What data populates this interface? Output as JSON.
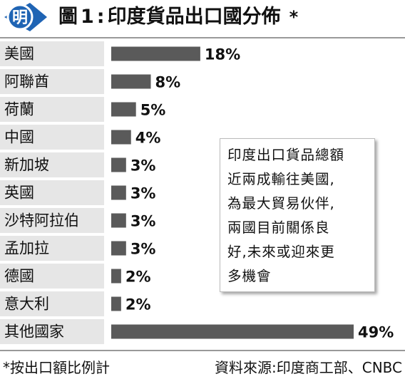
{
  "header": {
    "logo_text": "明",
    "title_prefix": "圖",
    "title_number": "1",
    "title_colon": ":",
    "title_text": "印度貨品出口國分佈",
    "title_star": "*"
  },
  "colors": {
    "bar": "#5a5a5a",
    "accent": "#1f64b4",
    "row_stripe": "#e6e6e6"
  },
  "chart_data": {
    "type": "bar",
    "orientation": "horizontal",
    "title": "印度貨品出口國分佈*",
    "categories": [
      "美國",
      "阿聯酋",
      "荷蘭",
      "中國",
      "新加坡",
      "英國",
      "沙特阿拉伯",
      "孟加拉",
      "德國",
      "意大利",
      "其他國家"
    ],
    "values": [
      18,
      8,
      5,
      4,
      3,
      3,
      3,
      3,
      2,
      2,
      49
    ],
    "value_labels": [
      "18%",
      "8%",
      "5%",
      "4%",
      "3%",
      "3%",
      "3%",
      "3%",
      "2%",
      "2%",
      "49%"
    ],
    "xlim": [
      0,
      49
    ],
    "unit": "%",
    "grid": false
  },
  "note": {
    "lines": [
      "印度出口貨品總額",
      "近兩成輸往美國,",
      "為最大貿易伙伴,",
      "兩國目前關係良",
      "好,未來或迎來更",
      "多機會"
    ]
  },
  "footer": {
    "footnote": "*按出口額比例計",
    "source": "資料來源:印度商工部、CNBC"
  }
}
